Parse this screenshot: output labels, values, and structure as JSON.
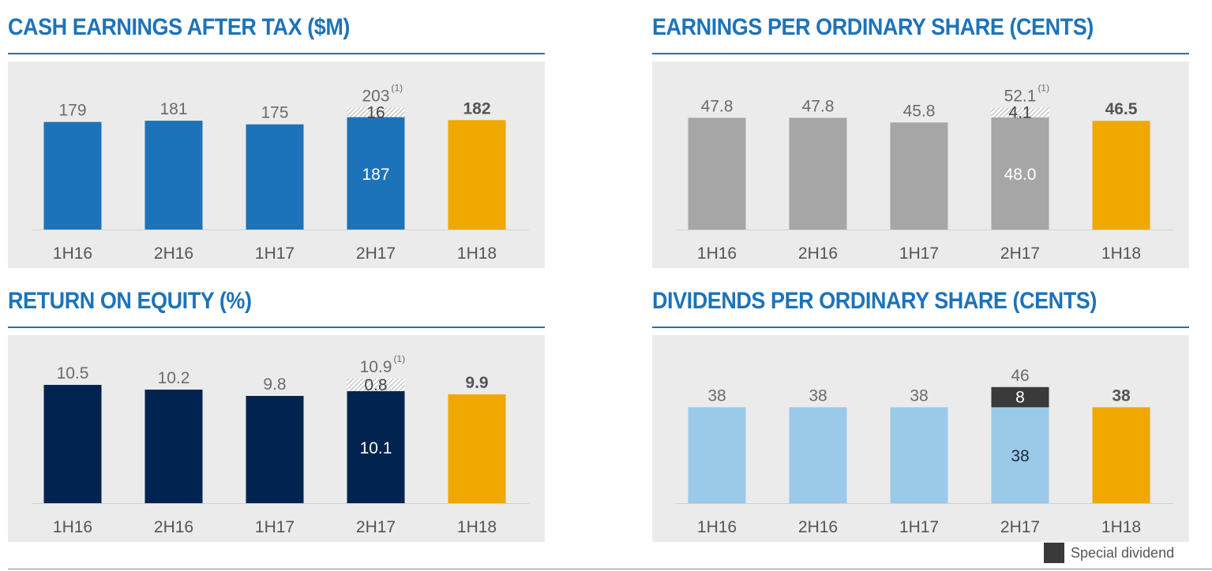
{
  "colors": {
    "title": "#1d73b9",
    "rule": "#1d73b9",
    "highlight": "#eea800",
    "special": "#3a3a3a",
    "value_text": "#6b6b6b",
    "axis_text": "#555555",
    "inner_text": "#ffffff"
  },
  "legend": {
    "label": "Special dividend",
    "color": "#3a3a3a"
  },
  "chart_data": [
    {
      "type": "bar",
      "title": "CASH EARNINGS AFTER TAX ($M)",
      "categories": [
        "1H16",
        "2H16",
        "1H17",
        "2H17",
        "1H18"
      ],
      "ylim": [
        0,
        210
      ],
      "series": [
        {
          "values": [
            179,
            181,
            175,
            187,
            182
          ],
          "colors": [
            "#1d73b9",
            "#1d73b9",
            "#1d73b9",
            "#1d73b9",
            "#eea800"
          ]
        },
        {
          "values": [
            0,
            0,
            0,
            16,
            0
          ],
          "pattern": "hatched"
        }
      ],
      "stack_labels": [
        {
          "index": 3,
          "series": 0,
          "text": "187"
        },
        {
          "index": 3,
          "series": 1,
          "text": "16"
        }
      ],
      "totals": [
        "179",
        "181",
        "175",
        "203",
        "182"
      ],
      "total_notes": [
        "",
        "",
        "",
        "(1)",
        ""
      ],
      "bold_index": 4
    },
    {
      "type": "bar",
      "title": "EARNINGS PER ORDINARY SHARE (CENTS)",
      "categories": [
        "1H16",
        "2H16",
        "1H17",
        "2H17",
        "1H18"
      ],
      "ylim": [
        0,
        54
      ],
      "series": [
        {
          "values": [
            47.8,
            47.8,
            45.8,
            48.0,
            46.5
          ],
          "colors": [
            "#a6a6a6",
            "#a6a6a6",
            "#a6a6a6",
            "#a6a6a6",
            "#eea800"
          ]
        },
        {
          "values": [
            0,
            0,
            0,
            4.1,
            0
          ],
          "pattern": "hatched"
        }
      ],
      "stack_labels": [
        {
          "index": 3,
          "series": 0,
          "text": "48.0"
        },
        {
          "index": 3,
          "series": 1,
          "text": "4.1"
        }
      ],
      "totals": [
        "47.8",
        "47.8",
        "45.8",
        "52.1",
        "46.5"
      ],
      "total_notes": [
        "",
        "",
        "",
        "(1)",
        ""
      ],
      "bold_index": 4
    },
    {
      "type": "bar",
      "title": "RETURN ON EQUITY (%)",
      "categories": [
        "1H16",
        "2H16",
        "1H17",
        "2H17",
        "1H18"
      ],
      "ylim": [
        0,
        11
      ],
      "series": [
        {
          "values": [
            10.5,
            10.2,
            9.8,
            10.1,
            9.9
          ],
          "colors": [
            "#00244f",
            "#00244f",
            "#00244f",
            "#00244f",
            "#eea800"
          ]
        },
        {
          "values": [
            0,
            0,
            0,
            0.8,
            0
          ],
          "pattern": "hatched"
        }
      ],
      "stack_labels": [
        {
          "index": 3,
          "series": 0,
          "text": "10.1"
        },
        {
          "index": 3,
          "series": 1,
          "text": "0.8"
        }
      ],
      "totals": [
        "10.5",
        "10.2",
        "9.8",
        "10.9",
        "9.9"
      ],
      "total_notes": [
        "",
        "",
        "",
        "(1)",
        ""
      ],
      "bold_index": 4,
      "axis_floor": 3
    },
    {
      "type": "bar",
      "title": "DIVIDENDS PER ORDINARY SHARE (CENTS)",
      "categories": [
        "1H16",
        "2H16",
        "1H17",
        "2H17",
        "1H18"
      ],
      "ylim": [
        0,
        50
      ],
      "series": [
        {
          "values": [
            38,
            38,
            38,
            38,
            38
          ],
          "colors": [
            "#9bc9ea",
            "#9bc9ea",
            "#9bc9ea",
            "#9bc9ea",
            "#eea800"
          ]
        },
        {
          "name": "Special dividend",
          "values": [
            0,
            0,
            0,
            8,
            0
          ],
          "color": "#3a3a3a"
        }
      ],
      "stack_labels": [
        {
          "index": 3,
          "series": 0,
          "text": "38"
        },
        {
          "index": 3,
          "series": 1,
          "text": "8"
        }
      ],
      "totals": [
        "38",
        "38",
        "38",
        "46",
        "38"
      ],
      "total_notes": [
        "",
        "",
        "",
        "",
        ""
      ],
      "bold_index": 4
    }
  ]
}
